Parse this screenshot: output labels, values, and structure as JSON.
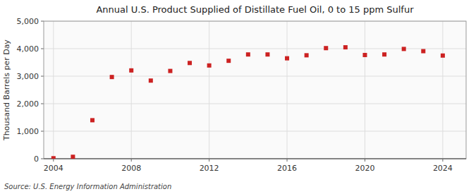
{
  "chart_data": {
    "type": "scatter",
    "title": "Annual U.S. Product Supplied of Distillate Fuel Oil, 0 to 15 ppm Sulfur",
    "y_label": "Thousand Barrels per Day",
    "source": "Source: U.S. Energy Information Administration",
    "x": [
      2004,
      2005,
      2006,
      2007,
      2008,
      2009,
      2010,
      2011,
      2012,
      2013,
      2014,
      2015,
      2016,
      2017,
      2018,
      2019,
      2020,
      2021,
      2022,
      2023,
      2024
    ],
    "values": [
      18,
      70,
      1400,
      2970,
      3210,
      2840,
      3190,
      3480,
      3390,
      3560,
      3790,
      3790,
      3650,
      3760,
      4020,
      4050,
      3770,
      3790,
      3990,
      3910,
      3750
    ],
    "color": "#cc2222",
    "marker": "square",
    "xlim": [
      2003.5,
      2025.2
    ],
    "ylim": [
      0,
      5000
    ],
    "xticks": [
      2004,
      2008,
      2012,
      2016,
      2020,
      2024
    ],
    "yticks": [
      0,
      {
        "value": 1000,
        "label": "1,000"
      },
      {
        "value": 2000,
        "label": "2,000"
      },
      {
        "value": 3000,
        "label": "3,000"
      },
      {
        "value": 4000,
        "label": "4,000"
      },
      {
        "value": 5000,
        "label": "5,000"
      }
    ],
    "grid": true
  }
}
